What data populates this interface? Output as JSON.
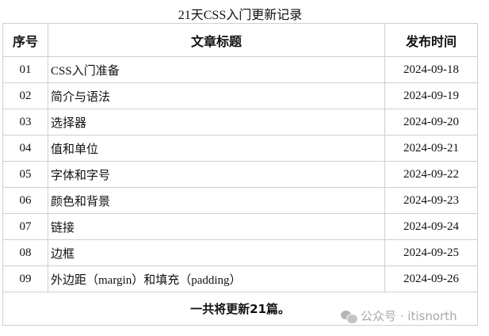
{
  "caption": "21天CSS入门更新记录",
  "headers": [
    "序号",
    "文章标题",
    "发布时间"
  ],
  "rows": [
    {
      "num": "01",
      "title": "CSS入门准备",
      "date": "2024-09-18"
    },
    {
      "num": "02",
      "title": "简介与语法",
      "date": "2024-09-19"
    },
    {
      "num": "03",
      "title": "选择器",
      "date": "2024-09-20"
    },
    {
      "num": "04",
      "title": "值和单位",
      "date": "2024-09-21"
    },
    {
      "num": "05",
      "title": "字体和字号",
      "date": "2024-09-22"
    },
    {
      "num": "06",
      "title": "颜色和背景",
      "date": "2024-09-23"
    },
    {
      "num": "07",
      "title": "链接",
      "date": "2024-09-24"
    },
    {
      "num": "08",
      "title": "边框",
      "date": "2024-09-25"
    },
    {
      "num": "09",
      "title": "外边距（margin）和填充（padding）",
      "date": "2024-09-26"
    }
  ],
  "footer": "一共将更新21篇。",
  "watermark": {
    "icon": "wechat-icon",
    "text": "公众号 · itisnorth"
  }
}
